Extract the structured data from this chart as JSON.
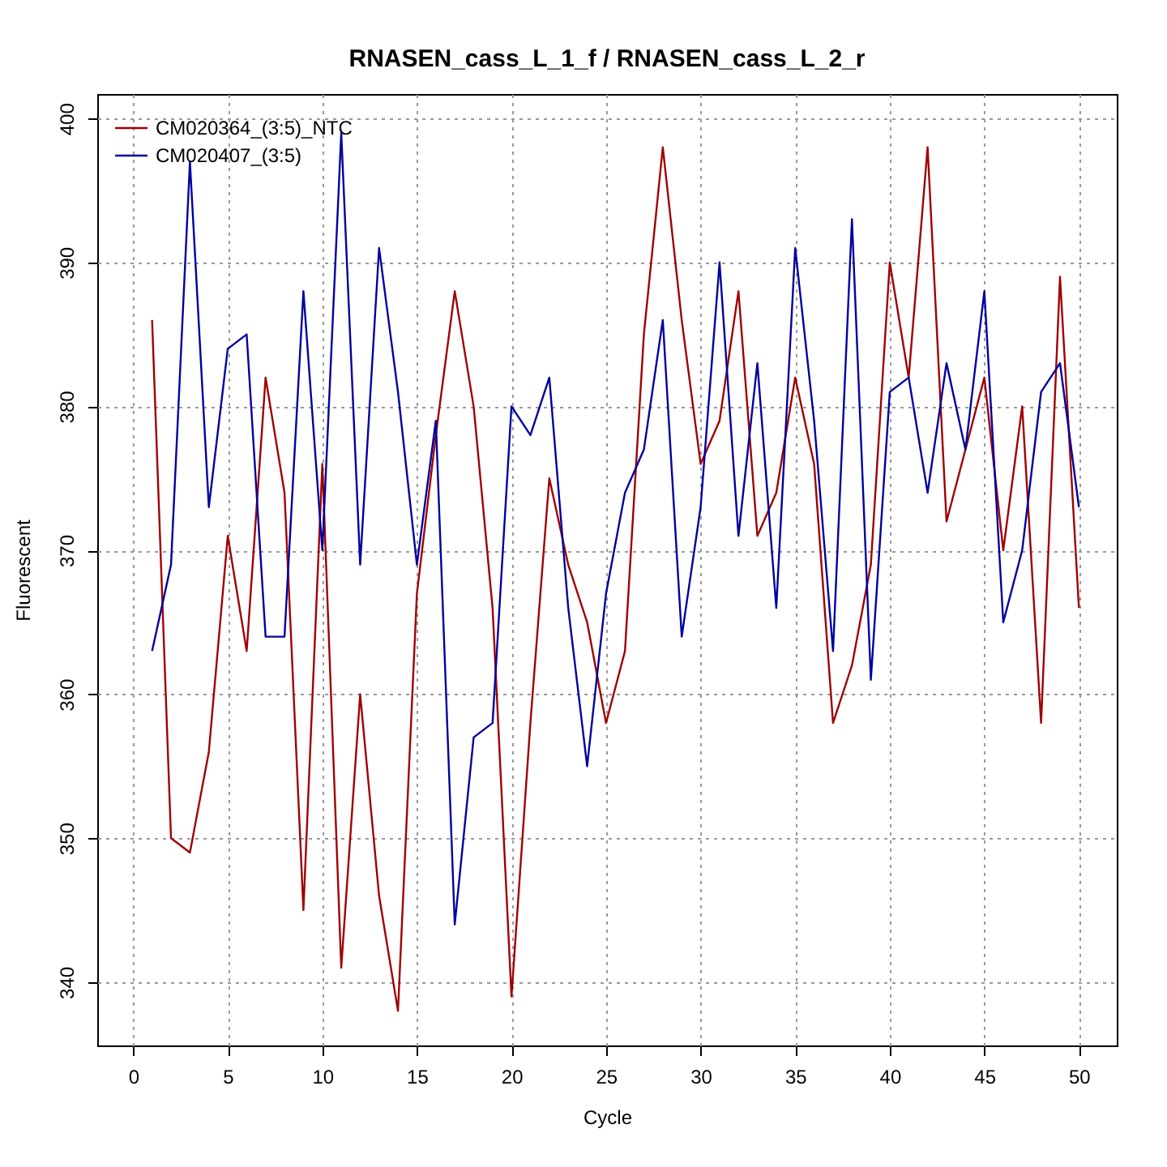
{
  "chart_data": {
    "type": "line",
    "title": "RNASEN_cass_L_1_f / RNASEN_cass_L_2_r",
    "xlabel": "Cycle",
    "ylabel": "Fluorescent",
    "x": [
      1,
      2,
      3,
      4,
      5,
      6,
      7,
      8,
      9,
      10,
      11,
      12,
      13,
      14,
      15,
      16,
      17,
      18,
      19,
      20,
      21,
      22,
      23,
      24,
      25,
      26,
      27,
      28,
      29,
      30,
      31,
      32,
      33,
      34,
      35,
      36,
      37,
      38,
      39,
      40,
      41,
      42,
      43,
      44,
      45,
      46,
      47,
      48,
      49,
      50
    ],
    "series": [
      {
        "name": "CM020364_(3:5)_NTC",
        "color": "#a00000",
        "values": [
          386,
          350,
          349,
          356,
          371,
          363,
          382,
          374,
          345,
          376,
          341,
          360,
          346,
          338,
          367,
          378,
          388,
          380,
          366,
          339,
          358,
          375,
          369,
          365,
          358,
          363,
          385,
          398,
          386,
          376,
          379,
          388,
          371,
          374,
          382,
          376,
          358,
          362,
          369,
          390,
          382,
          398,
          372,
          377,
          382,
          370,
          380,
          358,
          389,
          366
        ]
      },
      {
        "name": "CM020407_(3:5)",
        "color": "#0000a0",
        "values": [
          363,
          369,
          397,
          373,
          384,
          385,
          364,
          364,
          388,
          370,
          399,
          369,
          391,
          381,
          369,
          379,
          344,
          357,
          358,
          380,
          378,
          382,
          366,
          355,
          367,
          374,
          377,
          386,
          364,
          373,
          390,
          371,
          383,
          366,
          391,
          379,
          363,
          393,
          361,
          381,
          382,
          374,
          383,
          377,
          388,
          365,
          370,
          381,
          383,
          373
        ]
      }
    ],
    "xlim": [
      -1.9,
      52
    ],
    "ylim": [
      335.6,
      401.7
    ],
    "xticks": [
      0,
      5,
      10,
      15,
      20,
      25,
      30,
      35,
      40,
      45,
      50
    ],
    "yticks": [
      340,
      350,
      360,
      370,
      380,
      390,
      400
    ],
    "grid": true,
    "legend": "top left",
    "marker": "none",
    "line_style": "solid"
  }
}
